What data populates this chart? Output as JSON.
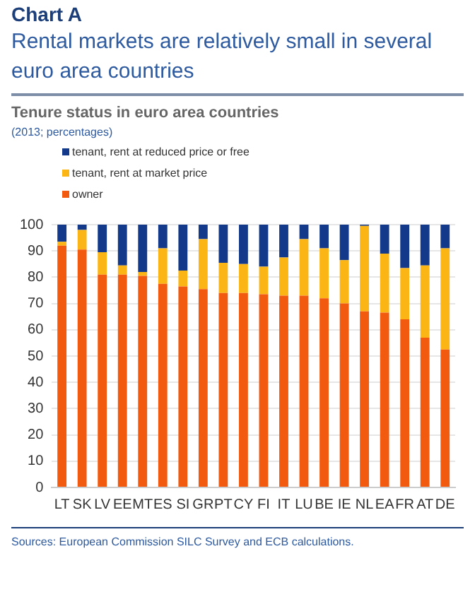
{
  "chart_data": {
    "type": "bar",
    "stacked": true,
    "title": "Rental markets are relatively small in several euro area countries",
    "subtitle": "Tenure status in euro area countries",
    "annotations": [
      "Chart A",
      "(2013; percentages)",
      "Sources: European Commission SILC Survey and ECB calculations."
    ],
    "categories": [
      "LT",
      "SK",
      "LV",
      "EE",
      "MT",
      "ES",
      "SI",
      "GR",
      "PT",
      "CY",
      "FI",
      "IT",
      "LU",
      "BE",
      "IE",
      "NL",
      "EA",
      "FR",
      "AT",
      "DE"
    ],
    "series": [
      {
        "name": "owner",
        "color": "#f25a0f",
        "values": [
          92,
          90.5,
          81,
          81,
          80.5,
          77.5,
          76.5,
          75.5,
          74,
          74,
          73.5,
          73,
          73,
          72,
          70,
          67,
          66.5,
          64,
          57,
          52.5
        ]
      },
      {
        "name": "tenant, rent at market price",
        "color": "#fbb514",
        "values": [
          1.5,
          7.5,
          8.5,
          3.5,
          1.5,
          13.5,
          6,
          19,
          11.5,
          11,
          10.5,
          14.5,
          21.5,
          19,
          16.5,
          32.5,
          22.5,
          19.5,
          27.5,
          38.5
        ]
      },
      {
        "name": "tenant, rent at reduced price or free",
        "color": "#12398a",
        "values": [
          6.5,
          2,
          10.5,
          15.5,
          18,
          9,
          17.5,
          5.5,
          14.5,
          15,
          16,
          12.5,
          5.5,
          9,
          13.5,
          0.5,
          11,
          16.5,
          15.5,
          9
        ]
      }
    ],
    "ylim": [
      0,
      100
    ],
    "yticks": [
      0,
      10,
      20,
      30,
      40,
      50,
      60,
      70,
      80,
      90,
      100
    ],
    "grid": "y",
    "legend": "top"
  }
}
